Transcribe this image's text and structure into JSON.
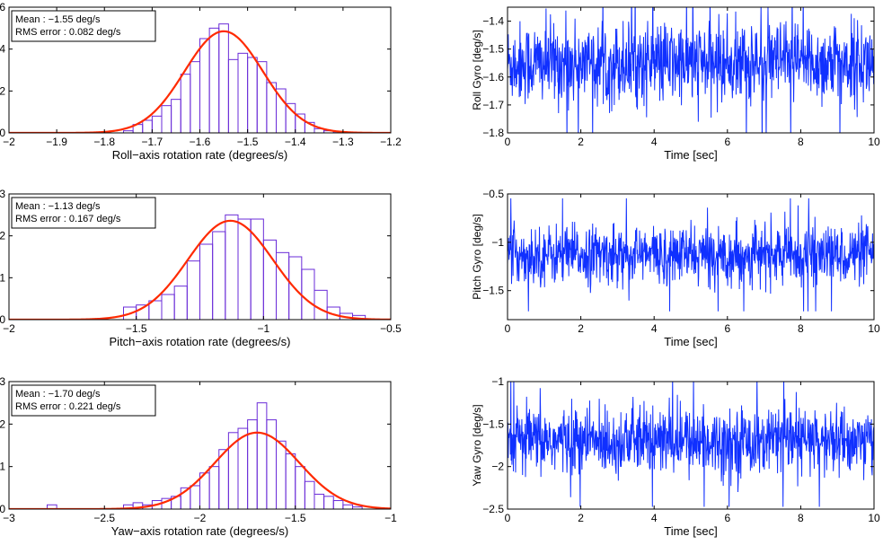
{
  "colors": {
    "bar_edge": "#6a2bd8",
    "fit": "#ff2a00",
    "trace": "#1030ff",
    "axis": "#000000"
  },
  "chart_data": [
    {
      "type": "bar",
      "xlabel": "Roll−axis rotation rate (degrees/s)",
      "ylabel": "",
      "xlim": [
        -2,
        -1.2
      ],
      "ylim": [
        0,
        6
      ],
      "xticks": [
        "−2",
        "−1.9",
        "−1.8",
        "−1.7",
        "−1.6",
        "−1.5",
        "−1.4",
        "−1.3",
        "−1.2"
      ],
      "yticks": [
        "0",
        "2",
        "4",
        "6"
      ],
      "bins": [
        -1.76,
        -1.74,
        -1.72,
        -1.7,
        -1.68,
        -1.66,
        -1.64,
        -1.62,
        -1.6,
        -1.58,
        -1.56,
        -1.54,
        -1.52,
        -1.5,
        -1.48,
        -1.46,
        -1.44,
        -1.42,
        -1.4,
        -1.38,
        -1.36,
        -1.34,
        -1.32
      ],
      "values": [
        0.1,
        0.4,
        0.6,
        0.8,
        1.3,
        1.6,
        2.8,
        3.4,
        4.5,
        5.0,
        5.2,
        3.5,
        3.8,
        3.6,
        3.4,
        2.4,
        2.1,
        1.4,
        0.9,
        0.5,
        0.2,
        0.1,
        0.05
      ],
      "bin_width": 0.02,
      "fit": {
        "mean": -1.55,
        "sigma": 0.082,
        "peak": 4.85
      },
      "annotations": [
        "Mean : −1.55 deg/s",
        "RMS error : 0.082 deg/s"
      ]
    },
    {
      "type": "bar",
      "xlabel": "Pitch−axis rotation rate (degrees/s)",
      "ylabel": "",
      "xlim": [
        -2,
        -0.5
      ],
      "ylim": [
        0,
        3
      ],
      "xticks": [
        "−2",
        "−1.5",
        "−1",
        "−0.5"
      ],
      "yticks": [
        "0",
        "1",
        "2",
        "3"
      ],
      "bins": [
        -1.55,
        -1.5,
        -1.45,
        -1.4,
        -1.35,
        -1.3,
        -1.25,
        -1.2,
        -1.15,
        -1.1,
        -1.05,
        -1.0,
        -0.95,
        -0.9,
        -0.85,
        -0.8,
        -0.75,
        -0.7,
        -0.65
      ],
      "values": [
        0.3,
        0.35,
        0.45,
        0.6,
        0.8,
        1.4,
        1.8,
        2.1,
        2.5,
        2.4,
        2.4,
        1.9,
        1.6,
        1.5,
        1.2,
        0.7,
        0.3,
        0.15,
        0.1
      ],
      "bin_width": 0.05,
      "fit": {
        "mean": -1.13,
        "sigma": 0.167,
        "peak": 2.36
      },
      "annotations": [
        "Mean : −1.13 deg/s",
        "RMS error : 0.167 deg/s"
      ]
    },
    {
      "type": "bar",
      "xlabel": "Yaw−axis rotation rate (degrees/s)",
      "ylabel": "",
      "xlim": [
        -3,
        -1
      ],
      "ylim": [
        0,
        3
      ],
      "xticks": [
        "−3",
        "−2.5",
        "−2",
        "−1.5",
        "−1"
      ],
      "yticks": [
        "0",
        "1",
        "2",
        "3"
      ],
      "bins": [
        -2.8,
        -2.4,
        -2.35,
        -2.3,
        -2.25,
        -2.2,
        -2.15,
        -2.1,
        -2.05,
        -2.0,
        -1.95,
        -1.9,
        -1.85,
        -1.8,
        -1.75,
        -1.7,
        -1.65,
        -1.6,
        -1.55,
        -1.5,
        -1.45,
        -1.4,
        -1.35,
        -1.3,
        -1.25,
        -1.2
      ],
      "values": [
        0.1,
        0.1,
        0.15,
        0.1,
        0.2,
        0.25,
        0.3,
        0.5,
        0.55,
        0.85,
        1.0,
        1.4,
        1.8,
        1.9,
        2.1,
        2.5,
        2.1,
        1.6,
        1.3,
        1.0,
        0.65,
        0.35,
        0.3,
        0.2,
        0.1,
        0.05
      ],
      "bin_width": 0.05,
      "fit": {
        "mean": -1.7,
        "sigma": 0.221,
        "peak": 1.8
      },
      "annotations": [
        "Mean : −1.70 deg/s",
        "RMS error : 0.221 deg/s"
      ]
    },
    {
      "type": "line",
      "xlabel": "Time [sec]",
      "ylabel": "Roll Gyro [deg/s]",
      "xlim": [
        0,
        10
      ],
      "ylim": [
        -1.8,
        -1.35
      ],
      "xticks": [
        "0",
        "2",
        "4",
        "6",
        "8",
        "10"
      ],
      "yticks": [
        "−1.8",
        "−1.7",
        "−1.6",
        "−1.5",
        "−1.4"
      ],
      "series": [
        {
          "mean": -1.55,
          "std": 0.082,
          "points": 1000
        }
      ]
    },
    {
      "type": "line",
      "xlabel": "Time [sec]",
      "ylabel": "Pitch Gyro [deg/s]",
      "xlim": [
        0,
        10
      ],
      "ylim": [
        -1.8,
        -0.5
      ],
      "xticks": [
        "0",
        "2",
        "4",
        "6",
        "8",
        "10"
      ],
      "yticks": [
        "−1.5",
        "−1",
        "−0.5"
      ],
      "series": [
        {
          "mean": -1.13,
          "std": 0.167,
          "points": 1000
        }
      ]
    },
    {
      "type": "line",
      "xlabel": "Time [sec]",
      "ylabel": "Yaw Gyro [deg/s]",
      "xlim": [
        0,
        10
      ],
      "ylim": [
        -2.5,
        -1
      ],
      "xticks": [
        "0",
        "2",
        "4",
        "6",
        "8",
        "10"
      ],
      "yticks": [
        "−2.5",
        "−2",
        "−1.5",
        "−1"
      ],
      "series": [
        {
          "mean": -1.7,
          "std": 0.221,
          "points": 1000
        }
      ]
    }
  ]
}
